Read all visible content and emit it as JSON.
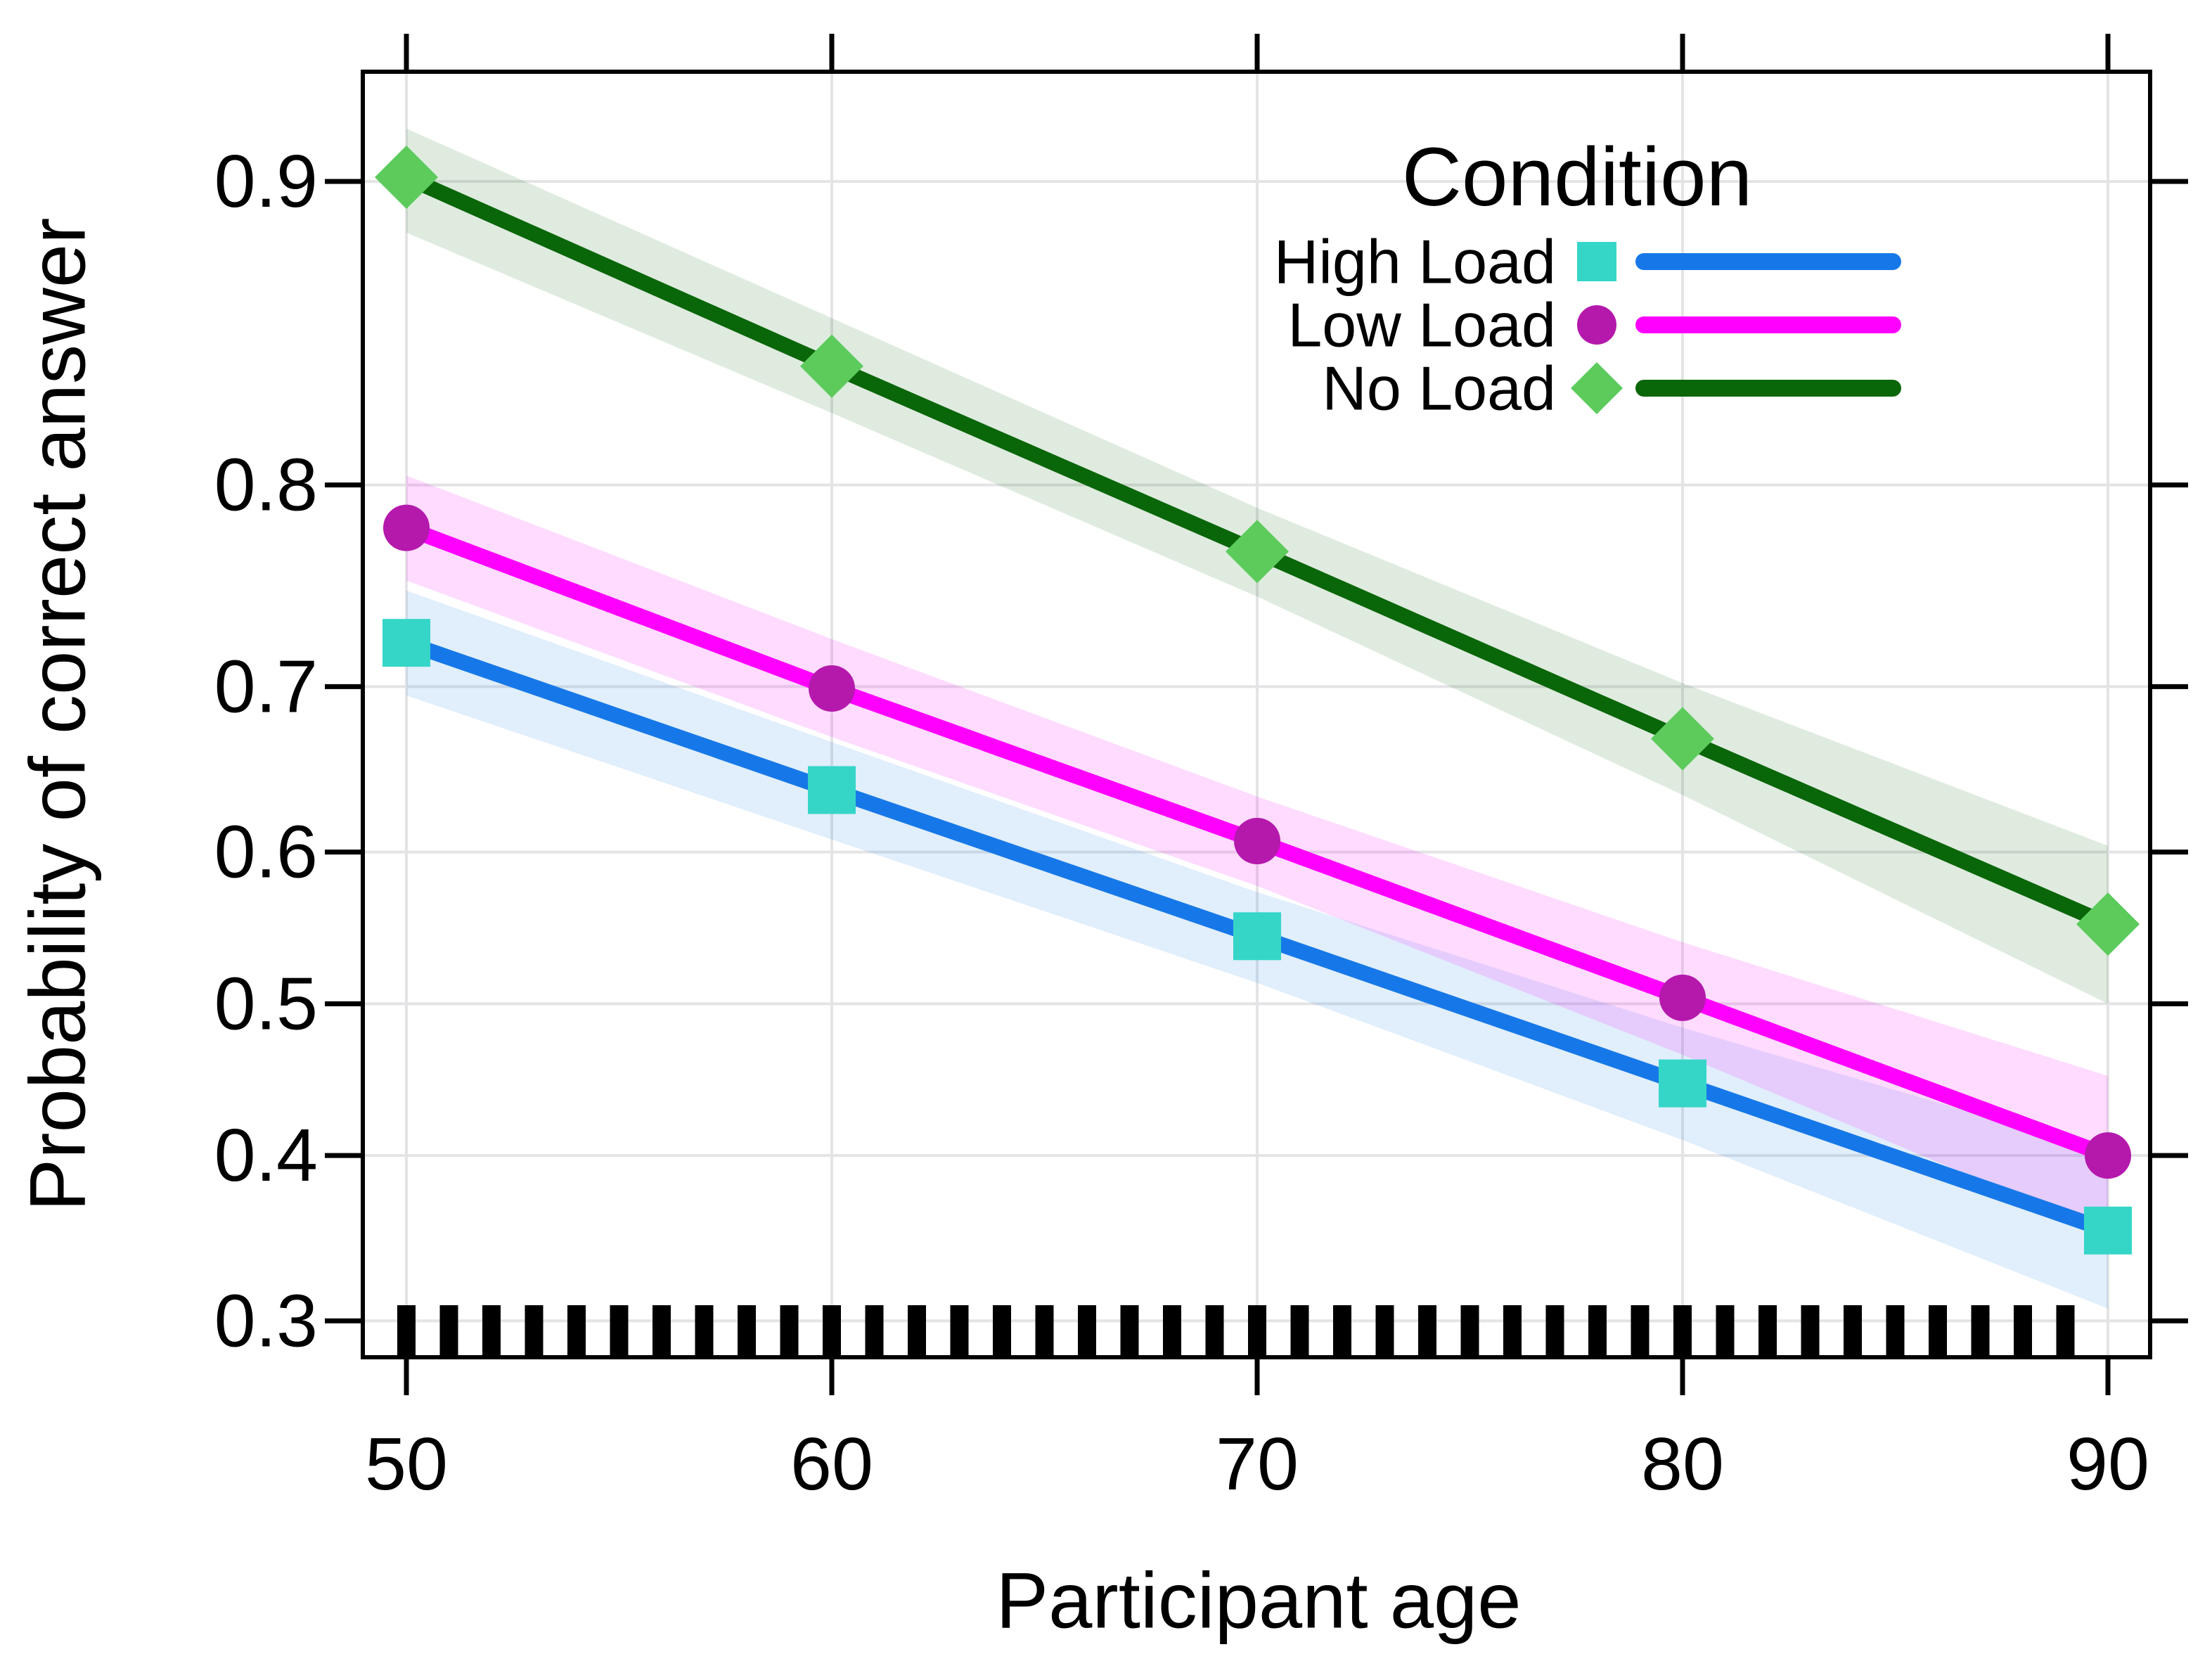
{
  "figure": {
    "xlabel": "Participant age",
    "ylabel": "Probability of correct answer",
    "legend_title": "Condition"
  },
  "colors": {
    "background": "#FFFFFF",
    "border": "#000000",
    "grid": "#E4E4E6",
    "text": "#000000",
    "rug": "#000000"
  },
  "chart_data": {
    "type": "line",
    "title": "",
    "xlabel": "Participant age",
    "ylabel": "Probability of correct answer",
    "grid": true,
    "x_axis": {
      "ticks": [
        50,
        60,
        70,
        80,
        90
      ],
      "tick_labels": [
        "50",
        "60",
        "70",
        "80",
        "90"
      ],
      "lim": [
        48.98,
        90.99
      ]
    },
    "y_axis": {
      "scale": "logit",
      "ticks": [
        0.9,
        0.8,
        0.7,
        0.6,
        0.5,
        0.4,
        0.3
      ],
      "tick_labels": [
        "0.9",
        "0.8",
        "0.7",
        "0.6",
        "0.5",
        "0.4",
        "0.3"
      ],
      "lim": [
        0.28,
        0.924
      ]
    },
    "legend": {
      "title": "Condition",
      "position": "top-right-inside",
      "entries": [
        "High Load",
        "Low Load",
        "No Load"
      ]
    },
    "x": [
      50,
      60,
      70,
      80,
      90
    ],
    "series": [
      {
        "name": "High Load",
        "marker": "square",
        "marker_color": "#35D6C8",
        "line_color": "#1678E8",
        "band_color": "rgba(22, 120, 232, 0.13)",
        "values": [
          0.724,
          0.639,
          0.545,
          0.447,
          0.353
        ],
        "band_lower": [
          0.695,
          0.608,
          0.514,
          0.41,
          0.307
        ],
        "band_upper": [
          0.751,
          0.668,
          0.574,
          0.484,
          0.402
        ]
      },
      {
        "name": "Low Load",
        "marker": "circle",
        "marker_color": "#B419AC",
        "line_color": "#FF00FF",
        "band_color": "rgba(255, 0, 255, 0.14)",
        "values": [
          0.781,
          0.699,
          0.607,
          0.504,
          0.4
        ],
        "band_lower": [
          0.756,
          0.671,
          0.578,
          0.466,
          0.351
        ],
        "band_upper": [
          0.804,
          0.726,
          0.635,
          0.541,
          0.452
        ]
      },
      {
        "name": "No Load",
        "marker": "diamond",
        "marker_color": "#5CCB5C",
        "line_color": "#096609",
        "band_color": "rgba(9, 102, 9, 0.13)",
        "values": [
          0.901,
          0.846,
          0.77,
          0.67,
          0.553
        ],
        "band_lower": [
          0.887,
          0.829,
          0.748,
          0.636,
          0.5
        ],
        "band_upper": [
          0.912,
          0.862,
          0.79,
          0.702,
          0.604
        ]
      }
    ],
    "rug": {
      "color": "#000000",
      "values": [
        50,
        51,
        52,
        53,
        54,
        55,
        56,
        57,
        58,
        59,
        60,
        61,
        62,
        63,
        64,
        65,
        66,
        67,
        68,
        69,
        70,
        71,
        72,
        73,
        74,
        75,
        76,
        77,
        78,
        79,
        80,
        81,
        82,
        83,
        84,
        85,
        86,
        87,
        88,
        89
      ]
    }
  }
}
